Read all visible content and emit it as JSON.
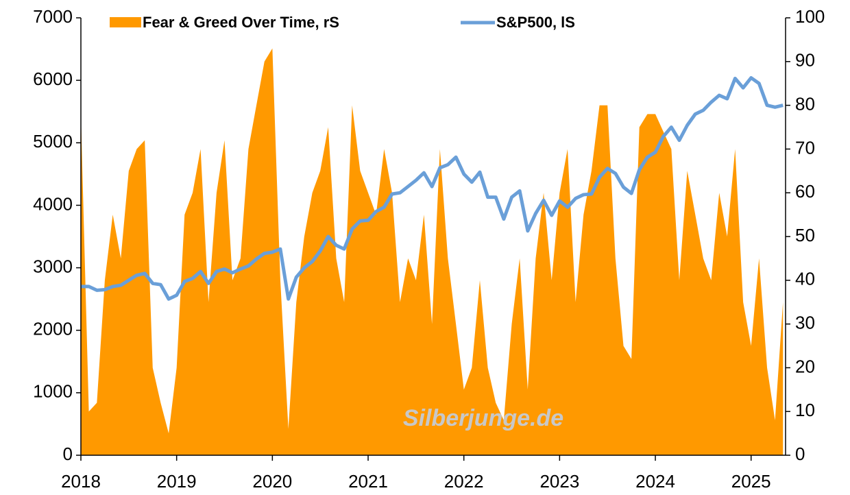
{
  "chart_data": {
    "type": "line-area",
    "x": [
      2018.0,
      2018.083,
      2018.167,
      2018.25,
      2018.333,
      2018.417,
      2018.5,
      2018.583,
      2018.667,
      2018.75,
      2018.833,
      2018.917,
      2019.0,
      2019.083,
      2019.167,
      2019.25,
      2019.333,
      2019.417,
      2019.5,
      2019.583,
      2019.667,
      2019.75,
      2019.833,
      2019.917,
      2020.0,
      2020.083,
      2020.167,
      2020.25,
      2020.333,
      2020.417,
      2020.5,
      2020.583,
      2020.667,
      2020.75,
      2020.833,
      2020.917,
      2021.0,
      2021.083,
      2021.167,
      2021.25,
      2021.333,
      2021.417,
      2021.5,
      2021.583,
      2021.667,
      2021.75,
      2021.833,
      2021.917,
      2022.0,
      2022.083,
      2022.167,
      2022.25,
      2022.333,
      2022.417,
      2022.5,
      2022.583,
      2022.667,
      2022.75,
      2022.833,
      2022.917,
      2023.0,
      2023.083,
      2023.167,
      2023.25,
      2023.333,
      2023.417,
      2023.5,
      2023.583,
      2023.667,
      2023.75,
      2023.833,
      2023.917,
      2024.0,
      2024.083,
      2024.167,
      2024.25,
      2024.333,
      2024.417,
      2024.5,
      2024.583,
      2024.667,
      2024.75,
      2024.833,
      2024.917,
      2025.0,
      2025.083,
      2025.167,
      2025.25,
      2025.333
    ],
    "series": [
      {
        "name": "Fear & Greed Over Time, rS",
        "color": "#ff9900",
        "axis": "y2",
        "kind": "area",
        "values": [
          78,
          10,
          12,
          40,
          55,
          45,
          65,
          70,
          72,
          20,
          12,
          5,
          20,
          55,
          60,
          70,
          35,
          60,
          72,
          40,
          45,
          70,
          80,
          90,
          93,
          40,
          6,
          35,
          50,
          60,
          65,
          75,
          45,
          35,
          80,
          65,
          60,
          55,
          70,
          60,
          35,
          45,
          40,
          55,
          30,
          70,
          45,
          30,
          15,
          20,
          40,
          20,
          12,
          8,
          30,
          45,
          15,
          45,
          60,
          40,
          60,
          70,
          35,
          55,
          65,
          80,
          80,
          45,
          25,
          22,
          75,
          78,
          78,
          74,
          70,
          40,
          65,
          55,
          45,
          40,
          60,
          50,
          70,
          35,
          25,
          45,
          20,
          8,
          35
        ]
      },
      {
        "name": "S&P500, lS",
        "color": "#6a9fd8",
        "axis": "y",
        "kind": "line",
        "values": [
          2700,
          2700,
          2640,
          2650,
          2700,
          2720,
          2800,
          2880,
          2910,
          2750,
          2730,
          2500,
          2560,
          2780,
          2830,
          2940,
          2750,
          2940,
          2980,
          2920,
          2980,
          3030,
          3140,
          3230,
          3250,
          3300,
          2500,
          2850,
          3000,
          3100,
          3270,
          3500,
          3360,
          3300,
          3620,
          3750,
          3760,
          3900,
          3970,
          4180,
          4200,
          4300,
          4400,
          4520,
          4300,
          4600,
          4650,
          4770,
          4500,
          4370,
          4530,
          4130,
          4130,
          3780,
          4130,
          4230,
          3590,
          3870,
          4080,
          3840,
          4070,
          3970,
          4110,
          4170,
          4180,
          4450,
          4590,
          4510,
          4290,
          4190,
          4570,
          4770,
          4850,
          5100,
          5250,
          5040,
          5280,
          5460,
          5520,
          5650,
          5760,
          5705,
          6030,
          5880,
          6040,
          5950,
          5600,
          5570,
          5600
        ]
      }
    ],
    "xlim": [
      2018,
      2025.36
    ],
    "xticks": [
      2018,
      2019,
      2020,
      2021,
      2022,
      2023,
      2024,
      2025
    ],
    "ylim": [
      0,
      7000
    ],
    "yticks": [
      0,
      1000,
      2000,
      3000,
      4000,
      5000,
      6000,
      7000
    ],
    "y2lim": [
      0,
      100
    ],
    "y2ticks": [
      0,
      10,
      20,
      30,
      40,
      50,
      60,
      70,
      80,
      90,
      100
    ],
    "annotation": "Silberjunge.de",
    "grid": false
  }
}
